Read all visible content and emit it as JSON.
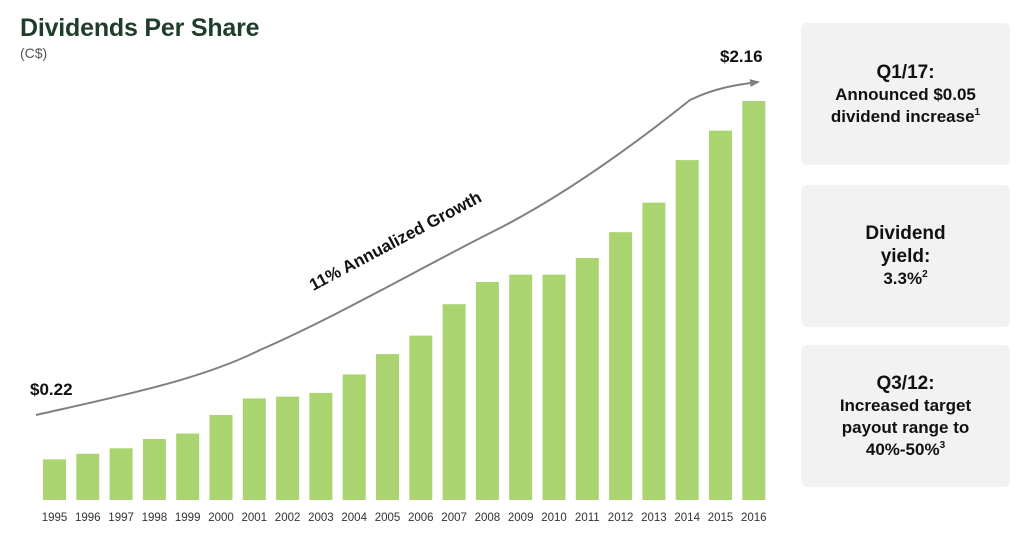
{
  "header": {
    "title": "Dividends Per Share",
    "subtitle": "(C$)"
  },
  "chart_data": {
    "type": "bar",
    "title": "Dividends Per Share",
    "subtitle": "(C$)",
    "xlabel": "",
    "ylabel": "",
    "ylim": [
      0,
      2.2
    ],
    "grid": false,
    "categories": [
      "1995",
      "1996",
      "1997",
      "1998",
      "1999",
      "2000",
      "2001",
      "2002",
      "2003",
      "2004",
      "2005",
      "2006",
      "2007",
      "2008",
      "2009",
      "2010",
      "2011",
      "2012",
      "2013",
      "2014",
      "2015",
      "2016"
    ],
    "series": [
      {
        "name": "Dividends Per Share (C$)",
        "color": "#a9d46f",
        "values": [
          0.22,
          0.25,
          0.28,
          0.33,
          0.36,
          0.46,
          0.55,
          0.56,
          0.58,
          0.68,
          0.79,
          0.89,
          1.06,
          1.18,
          1.22,
          1.22,
          1.31,
          1.45,
          1.61,
          1.84,
          2.0,
          2.16
        ]
      }
    ],
    "annotations": {
      "start_value": "$0.22",
      "end_value": "$2.16",
      "trend_label": "11% Annualized Growth",
      "trend_color": "#808080"
    }
  },
  "callouts": [
    {
      "head": "Q1/17:",
      "lines": [
        "Announced $0.05",
        "dividend increase"
      ],
      "footnote": "1"
    },
    {
      "head": "Dividend",
      "lines": [
        "yield:",
        "3.3%"
      ],
      "footnote": "2"
    },
    {
      "head": "Q3/12:",
      "lines": [
        "Increased target",
        "payout range to",
        "40%-50%"
      ],
      "footnote": "3"
    }
  ]
}
